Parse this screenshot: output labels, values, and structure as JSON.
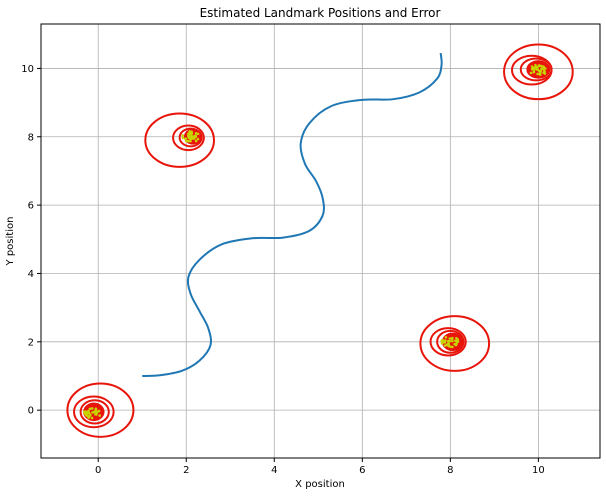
{
  "chart_data": {
    "type": "line",
    "title": "Estimated Landmark Positions and Error",
    "xlabel": "X position",
    "ylabel": "Y position",
    "xlim": [
      -1.3,
      11.4
    ],
    "ylim": [
      -1.4,
      11.3
    ],
    "grid": true,
    "xticks": [
      0,
      2,
      4,
      6,
      8,
      10
    ],
    "yticks": [
      0,
      2,
      4,
      6,
      8,
      10
    ],
    "series": [
      {
        "type": "line",
        "color": "#1f77b4",
        "points": [
          [
            1.0,
            1.0
          ],
          [
            1.4,
            1.02
          ],
          [
            1.9,
            1.15
          ],
          [
            2.3,
            1.45
          ],
          [
            2.55,
            1.9
          ],
          [
            2.5,
            2.4
          ],
          [
            2.3,
            2.9
          ],
          [
            2.1,
            3.4
          ],
          [
            2.05,
            3.9
          ],
          [
            2.3,
            4.4
          ],
          [
            2.8,
            4.85
          ],
          [
            3.5,
            5.03
          ],
          [
            4.2,
            5.05
          ],
          [
            4.8,
            5.25
          ],
          [
            5.1,
            5.7
          ],
          [
            5.1,
            6.2
          ],
          [
            4.95,
            6.7
          ],
          [
            4.7,
            7.2
          ],
          [
            4.6,
            7.8
          ],
          [
            4.8,
            8.4
          ],
          [
            5.3,
            8.9
          ],
          [
            6.0,
            9.08
          ],
          [
            6.7,
            9.1
          ],
          [
            7.3,
            9.3
          ],
          [
            7.7,
            9.7
          ],
          [
            7.8,
            10.1
          ],
          [
            7.78,
            10.45
          ]
        ]
      }
    ],
    "landmarks": [
      {
        "x": 0.0,
        "y": 0.0,
        "est": [
          -0.15,
          -0.1
        ],
        "ellipses": [
          [
            0.75,
            0.78
          ],
          [
            0.45,
            0.45
          ],
          [
            0.32,
            0.34
          ],
          [
            0.22,
            0.24
          ]
        ],
        "centers": [
          [
            0.05,
            0.0
          ],
          [
            -0.1,
            -0.05
          ],
          [
            -0.08,
            -0.05
          ],
          [
            -0.1,
            -0.05
          ]
        ]
      },
      {
        "x": 2.0,
        "y": 8.0,
        "est": [
          2.1,
          8.0
        ],
        "ellipses": [
          [
            0.78,
            0.78
          ],
          [
            0.35,
            0.36
          ],
          [
            0.25,
            0.26
          ],
          [
            0.18,
            0.2
          ]
        ],
        "centers": [
          [
            1.85,
            7.9
          ],
          [
            2.05,
            7.97
          ],
          [
            2.1,
            7.98
          ],
          [
            2.15,
            8.0
          ]
        ]
      },
      {
        "x": 8.0,
        "y": 2.0,
        "est": [
          8.0,
          2.0
        ],
        "ellipses": [
          [
            0.78,
            0.8
          ],
          [
            0.4,
            0.4
          ],
          [
            0.3,
            0.32
          ],
          [
            0.22,
            0.24
          ]
        ],
        "centers": [
          [
            8.1,
            1.95
          ],
          [
            7.95,
            2.0
          ],
          [
            8.0,
            2.0
          ],
          [
            8.05,
            2.0
          ]
        ]
      },
      {
        "x": 10.0,
        "y": 10.0,
        "est": [
          10.0,
          9.95
        ],
        "ellipses": [
          [
            0.78,
            0.8
          ],
          [
            0.45,
            0.42
          ],
          [
            0.35,
            0.32
          ],
          [
            0.25,
            0.24
          ]
        ],
        "centers": [
          [
            10.0,
            9.9
          ],
          [
            9.85,
            9.95
          ],
          [
            9.95,
            9.97
          ],
          [
            10.0,
            9.97
          ]
        ]
      }
    ],
    "colors": {
      "path": "#1f77b4",
      "ellipse": "#e8150b",
      "scatter": "#c8d400",
      "grid": "#b0b0b0"
    }
  }
}
